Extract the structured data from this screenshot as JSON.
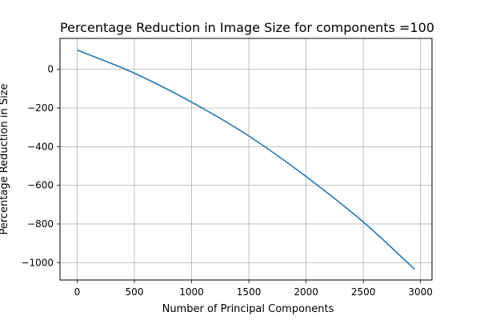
{
  "chart_data": {
    "type": "line",
    "title": "Percentage Reduction in Image Size for components =100",
    "xlabel": "Number of Principal Components",
    "ylabel": "Percentage Reduction in Size",
    "xlim": [
      -150,
      3100
    ],
    "ylim": [
      -1090,
      160
    ],
    "xticks": [
      0,
      500,
      1000,
      1500,
      2000,
      2500,
      3000
    ],
    "yticks": [
      0,
      -200,
      -400,
      -600,
      -800,
      -1000
    ],
    "xtick_labels": [
      "0",
      "500",
      "1000",
      "1500",
      "2000",
      "2500",
      "3000"
    ],
    "ytick_labels": [
      "0",
      "−200",
      "−400",
      "−600",
      "−800",
      "−1000"
    ],
    "grid": true,
    "line_color": "#1f77b4",
    "series": [
      {
        "x": [
          0,
          500,
          1000,
          1500,
          2000,
          2500,
          2950
        ],
        "values": [
          100,
          -20,
          -170,
          -345,
          -555,
          -790,
          -1035
        ]
      }
    ]
  }
}
